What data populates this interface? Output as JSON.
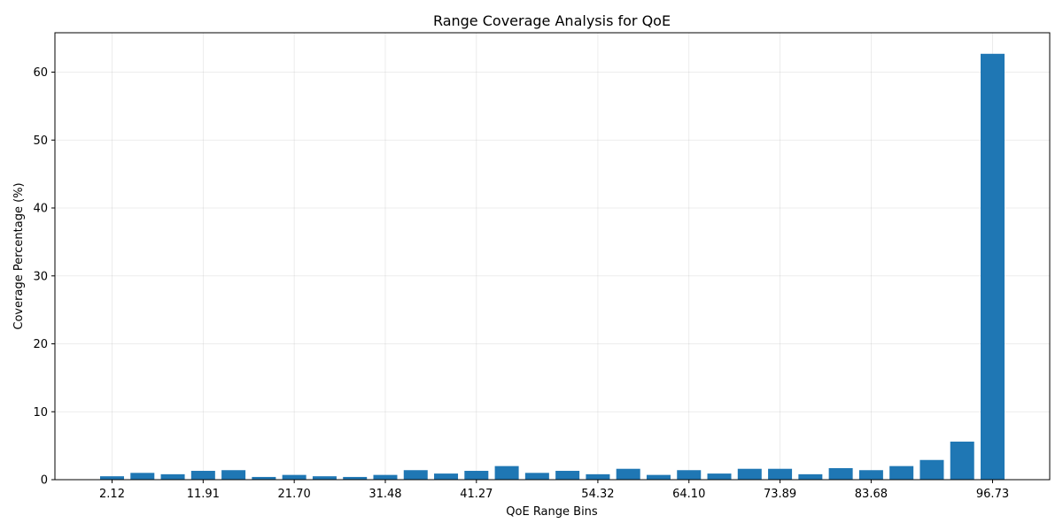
{
  "chart_data": {
    "type": "bar",
    "title": "Range Coverage Analysis for QoE",
    "xlabel": "QoE Range Bins",
    "ylabel": "Coverage Percentage (%)",
    "ylim": [
      0,
      65.8
    ],
    "yticks": [
      0,
      10,
      20,
      30,
      40,
      50,
      60
    ],
    "grid": true,
    "color": "#1f77b4",
    "bins": [
      {
        "label": "2.12",
        "value": 0.5
      },
      {
        "label": "",
        "value": 1.0
      },
      {
        "label": "",
        "value": 0.8
      },
      {
        "label": "11.91",
        "value": 1.3
      },
      {
        "label": "",
        "value": 1.4
      },
      {
        "label": "",
        "value": 0.4
      },
      {
        "label": "21.70",
        "value": 0.7
      },
      {
        "label": "",
        "value": 0.5
      },
      {
        "label": "",
        "value": 0.4
      },
      {
        "label": "31.48",
        "value": 0.7
      },
      {
        "label": "",
        "value": 1.4
      },
      {
        "label": "",
        "value": 0.9
      },
      {
        "label": "41.27",
        "value": 1.3
      },
      {
        "label": "",
        "value": 2.0
      },
      {
        "label": "",
        "value": 1.0
      },
      {
        "label": "",
        "value": 1.3
      },
      {
        "label": "54.32",
        "value": 0.8
      },
      {
        "label": "",
        "value": 1.6
      },
      {
        "label": "",
        "value": 0.7
      },
      {
        "label": "64.10",
        "value": 1.4
      },
      {
        "label": "",
        "value": 0.9
      },
      {
        "label": "",
        "value": 1.6
      },
      {
        "label": "73.89",
        "value": 1.6
      },
      {
        "label": "",
        "value": 0.8
      },
      {
        "label": "",
        "value": 1.7
      },
      {
        "label": "83.68",
        "value": 1.4
      },
      {
        "label": "",
        "value": 2.0
      },
      {
        "label": "",
        "value": 2.9
      },
      {
        "label": "",
        "value": 5.6
      },
      {
        "label": "96.73",
        "value": 62.7
      }
    ]
  }
}
